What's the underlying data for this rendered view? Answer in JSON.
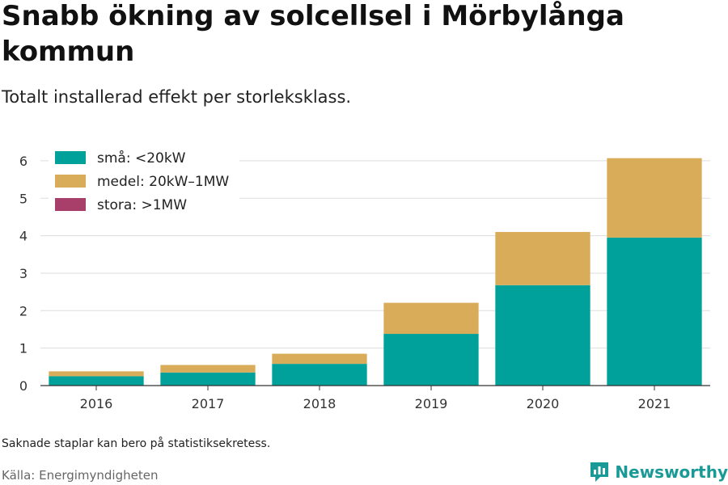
{
  "title": "Snabb ökning av solcellsel i Mörbylånga kommun",
  "subtitle": "Totalt installerad effekt per storleksklass.",
  "note": "Saknade staplar kan bero på statistiksekretess.",
  "source": "Källa: Energimyndigheten",
  "brand": {
    "name": "Newsworthy",
    "icon": "newsworthy-logo-icon",
    "color": "#1a9a96"
  },
  "chart_data": {
    "type": "bar",
    "stacked": true,
    "categories": [
      "2016",
      "2017",
      "2018",
      "2019",
      "2020",
      "2021"
    ],
    "series": [
      {
        "name": "små: <20kW",
        "color": "#00a19a",
        "values": [
          0.25,
          0.35,
          0.58,
          1.38,
          2.68,
          3.95
        ]
      },
      {
        "name": "medel: 20kW–1MW",
        "color": "#d9ac5a",
        "values": [
          0.13,
          0.2,
          0.27,
          0.83,
          1.42,
          2.12
        ]
      },
      {
        "name": "stora: >1MW",
        "color": "#a83f6b",
        "values": [
          0,
          0,
          0,
          0,
          0,
          0
        ]
      }
    ],
    "ylim": [
      0,
      6.3
    ],
    "yticks": [
      0,
      1,
      2,
      3,
      4,
      5,
      6
    ],
    "grid": true,
    "legend": "top-left"
  }
}
